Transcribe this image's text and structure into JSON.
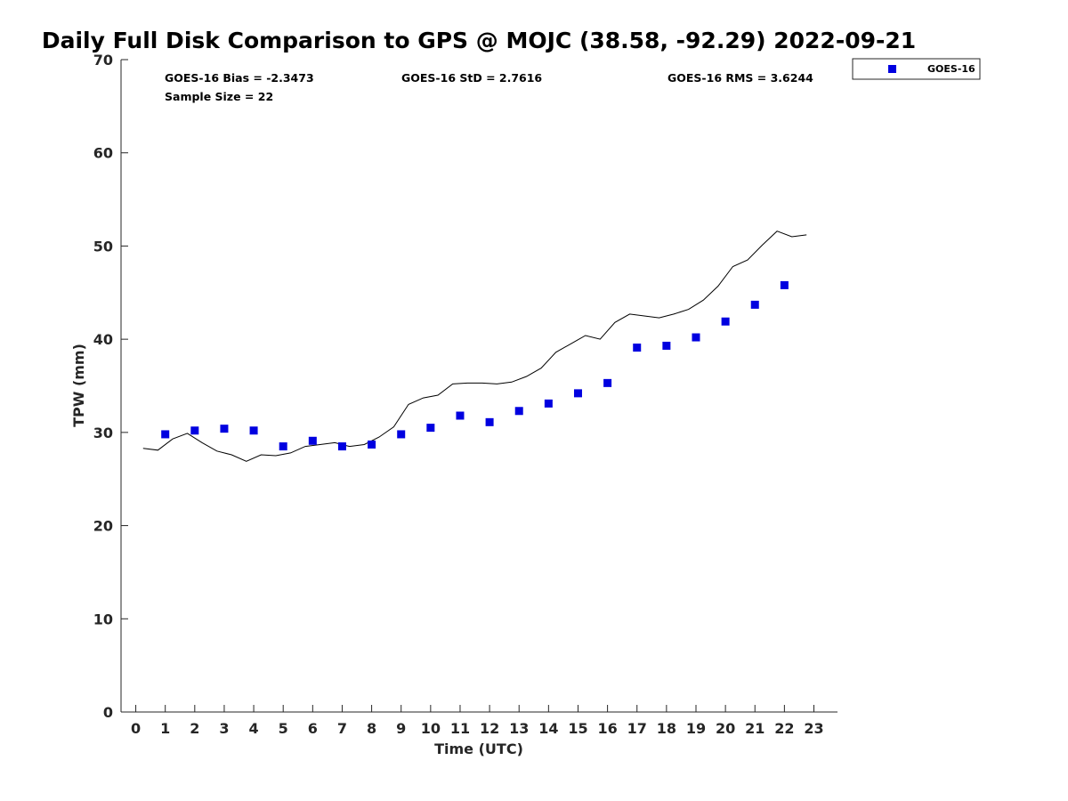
{
  "chart_data": {
    "type": "scatter",
    "title": "Daily Full Disk Comparison to GPS @ MOJC (38.58, -92.29) 2022-09-21",
    "xlabel": "Time (UTC)",
    "ylabel": "TPW (mm)",
    "xlim": [
      -0.5,
      23.8
    ],
    "ylim": [
      0,
      70
    ],
    "xticks": [
      0,
      1,
      2,
      3,
      4,
      5,
      6,
      7,
      8,
      9,
      10,
      11,
      12,
      13,
      14,
      15,
      16,
      17,
      18,
      19,
      20,
      21,
      22,
      23
    ],
    "yticks": [
      0,
      10,
      20,
      30,
      40,
      50,
      60,
      70
    ],
    "grid": false,
    "legend_position": "top-right (outside plot)",
    "stats": {
      "bias": "GOES-16 Bias = -2.3473",
      "std": "GOES-16 StD = 2.7616",
      "rms": "GOES-16 RMS = 3.6244",
      "sample": "Sample Size = 22"
    },
    "series": [
      {
        "name": "GOES-16",
        "kind": "scatter",
        "marker": "square",
        "color": "#0000e0",
        "x": [
          1,
          2,
          3,
          4,
          5,
          6,
          7,
          8,
          9,
          10,
          11,
          12,
          13,
          14,
          15,
          16,
          17,
          18,
          19,
          20,
          21,
          22
        ],
        "y": [
          29.8,
          30.2,
          30.4,
          30.2,
          28.5,
          29.1,
          28.5,
          28.7,
          29.8,
          30.5,
          31.8,
          31.1,
          32.3,
          33.1,
          34.2,
          35.3,
          39.1,
          39.3,
          40.2,
          41.9,
          43.7,
          45.8
        ]
      },
      {
        "kind": "line",
        "color": "#000000",
        "x": [
          0.25,
          0.75,
          1.25,
          1.75,
          2.25,
          2.75,
          3.25,
          3.75,
          4.25,
          4.75,
          5.25,
          5.75,
          6.25,
          6.75,
          7.25,
          7.75,
          8.25,
          8.75,
          9.25,
          9.75,
          10.25,
          10.75,
          11.25,
          11.75,
          12.25,
          12.75,
          13.25,
          13.75,
          14.25,
          14.75,
          15.25,
          15.75,
          16.25,
          16.75,
          17.25,
          17.75,
          18.25,
          18.75,
          19.25,
          19.75,
          20.25,
          20.75,
          21.25,
          21.75,
          22.25,
          22.75
        ],
        "y": [
          28.3,
          28.1,
          29.3,
          29.9,
          28.9,
          28.0,
          27.6,
          26.9,
          27.6,
          27.5,
          27.8,
          28.5,
          28.7,
          28.9,
          28.5,
          28.7,
          29.5,
          30.6,
          33.0,
          33.7,
          34.0,
          35.2,
          35.3,
          35.3,
          35.2,
          35.4,
          36.0,
          36.9,
          38.6,
          39.5,
          40.4,
          40.0,
          41.8,
          42.7,
          42.5,
          42.3,
          42.7,
          43.2,
          44.2,
          45.7,
          47.8,
          48.5,
          50.1,
          51.6,
          51.0,
          51.2
        ]
      }
    ]
  }
}
